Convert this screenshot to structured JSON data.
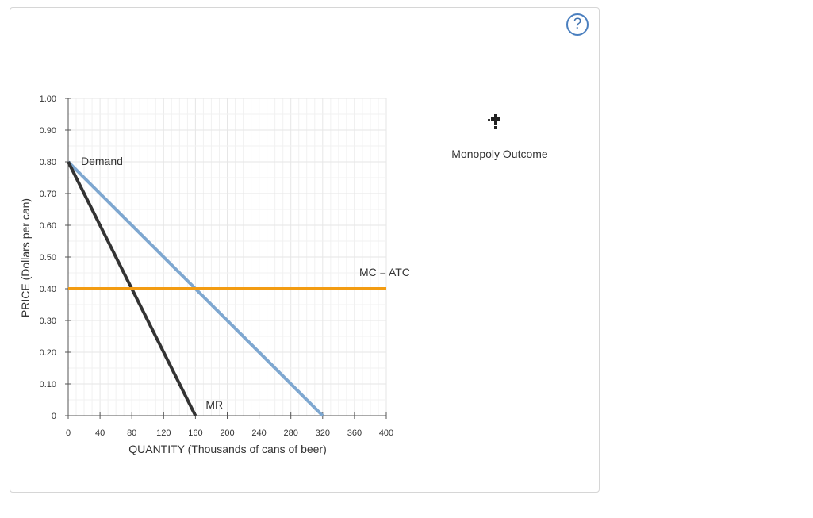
{
  "panel": {
    "help_label": "?"
  },
  "palette": {
    "tool_label": "Monopoly Outcome",
    "tool_icon": "crosshair-plus-icon"
  },
  "chart_data": {
    "type": "line",
    "xlabel": "QUANTITY (Thousands of cans of beer)",
    "ylabel": "PRICE (Dollars per can)",
    "xlim": [
      0,
      400
    ],
    "ylim": [
      0,
      1.0
    ],
    "x_ticks": [
      "0",
      "40",
      "80",
      "120",
      "160",
      "200",
      "240",
      "280",
      "320",
      "360",
      "400"
    ],
    "y_ticks": [
      "0",
      "0.10",
      "0.20",
      "0.30",
      "0.40",
      "0.50",
      "0.60",
      "0.70",
      "0.80",
      "0.90",
      "1.00"
    ],
    "grid": true,
    "series": [
      {
        "name": "Demand",
        "color": "#7ea7d0",
        "points": [
          [
            0,
            0.8
          ],
          [
            320,
            0
          ]
        ]
      },
      {
        "name": "MR",
        "color": "#333333",
        "points": [
          [
            0,
            0.8
          ],
          [
            160,
            0
          ]
        ]
      },
      {
        "name": "MC = ATC",
        "color": "#f39c12",
        "points": [
          [
            0,
            0.4
          ],
          [
            400,
            0.4
          ]
        ]
      }
    ]
  }
}
